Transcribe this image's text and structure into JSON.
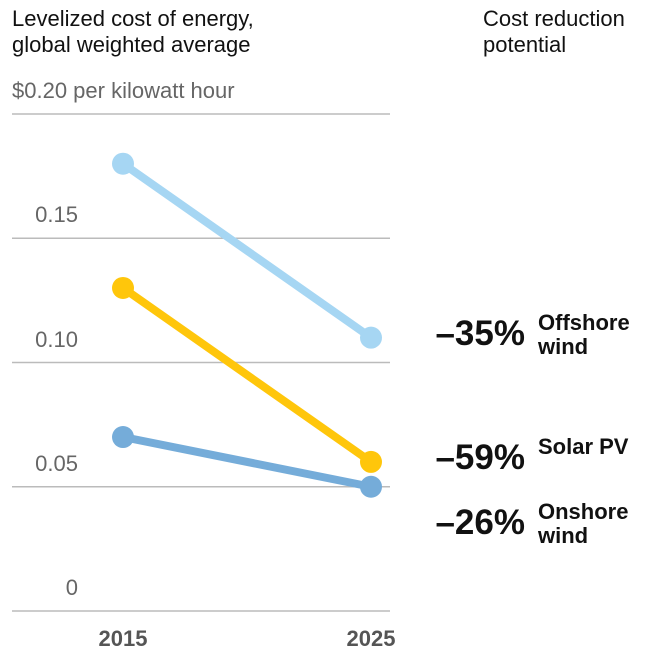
{
  "chart_data": {
    "type": "line",
    "title": "Levelized cost of energy, global weighted average",
    "right_title": "Cost reduction potential",
    "categories": [
      "2015",
      "2025"
    ],
    "series": [
      {
        "name": "Offshore wind",
        "color": "#a6d6f3",
        "values": [
          0.18,
          0.11
        ],
        "reduction": -35,
        "reduction_label": "–35%"
      },
      {
        "name": "Solar PV",
        "color": "#ffc60b",
        "values": [
          0.13,
          0.06
        ],
        "reduction": -59,
        "reduction_label": "–59%"
      },
      {
        "name": "Onshore wind",
        "color": "#75acd9",
        "values": [
          0.07,
          0.05
        ],
        "reduction": -26,
        "reduction_label": "–26%"
      }
    ],
    "ylim": [
      0,
      0.2
    ],
    "yticks": [
      0,
      0.05,
      {
        "value": 0.1,
        "label": "0.10"
      },
      0.15,
      {
        "value": 0.2,
        "label": "$0.20 per kilowatt hour"
      }
    ],
    "grid": true
  }
}
